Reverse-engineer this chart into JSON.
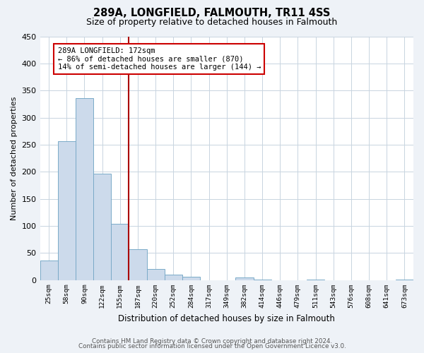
{
  "title": "289A, LONGFIELD, FALMOUTH, TR11 4SS",
  "subtitle": "Size of property relative to detached houses in Falmouth",
  "xlabel": "Distribution of detached houses by size in Falmouth",
  "ylabel": "Number of detached properties",
  "bar_labels": [
    "25sqm",
    "58sqm",
    "90sqm",
    "122sqm",
    "155sqm",
    "187sqm",
    "220sqm",
    "252sqm",
    "284sqm",
    "317sqm",
    "349sqm",
    "382sqm",
    "414sqm",
    "446sqm",
    "479sqm",
    "511sqm",
    "543sqm",
    "576sqm",
    "608sqm",
    "641sqm",
    "673sqm"
  ],
  "bar_values": [
    36,
    257,
    336,
    197,
    104,
    57,
    20,
    10,
    6,
    0,
    0,
    5,
    1,
    0,
    0,
    1,
    0,
    0,
    0,
    0,
    1
  ],
  "bar_color": "#ccdaeb",
  "bar_edge_color": "#7aaac8",
  "vline_x_idx": 5,
  "vline_color": "#aa0000",
  "annotation_title": "289A LONGFIELD: 172sqm",
  "annotation_line1": "← 86% of detached houses are smaller (870)",
  "annotation_line2": "14% of semi-detached houses are larger (144) →",
  "annotation_box_color": "#cc0000",
  "ylim": [
    0,
    450
  ],
  "yticks": [
    0,
    50,
    100,
    150,
    200,
    250,
    300,
    350,
    400,
    450
  ],
  "footer_line1": "Contains HM Land Registry data © Crown copyright and database right 2024.",
  "footer_line2": "Contains public sector information licensed under the Open Government Licence v3.0.",
  "bg_color": "#eef2f7",
  "plot_bg_color": "#ffffff",
  "grid_color": "#c8d4e0"
}
